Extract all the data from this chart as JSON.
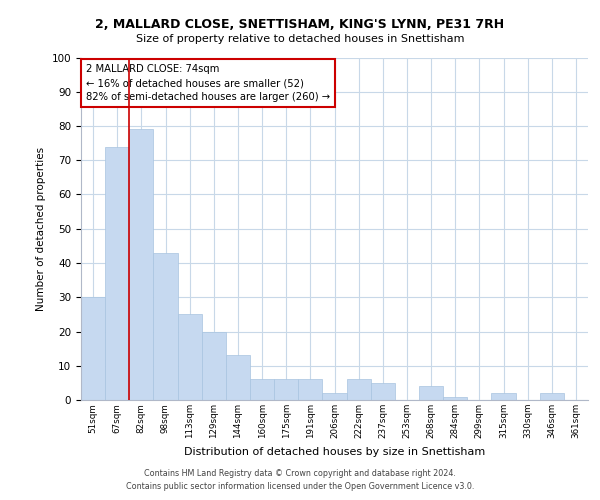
{
  "title_line1": "2, MALLARD CLOSE, SNETTISHAM, KING'S LYNN, PE31 7RH",
  "title_line2": "Size of property relative to detached houses in Snettisham",
  "xlabel": "Distribution of detached houses by size in Snettisham",
  "ylabel": "Number of detached properties",
  "bin_labels": [
    "51sqm",
    "67sqm",
    "82sqm",
    "98sqm",
    "113sqm",
    "129sqm",
    "144sqm",
    "160sqm",
    "175sqm",
    "191sqm",
    "206sqm",
    "222sqm",
    "237sqm",
    "253sqm",
    "268sqm",
    "284sqm",
    "299sqm",
    "315sqm",
    "330sqm",
    "346sqm",
    "361sqm"
  ],
  "bar_values": [
    30,
    74,
    79,
    43,
    25,
    20,
    13,
    6,
    6,
    6,
    2,
    6,
    5,
    0,
    4,
    1,
    0,
    2,
    0,
    2,
    0
  ],
  "bar_color": "#c6d9f0",
  "bar_edge_color": "#a8c4e0",
  "annotation_title": "2 MALLARD CLOSE: 74sqm",
  "annotation_line1": "← 16% of detached houses are smaller (52)",
  "annotation_line2": "82% of semi-detached houses are larger (260) →",
  "annotation_box_color": "#ffffff",
  "annotation_box_edge": "#cc0000",
  "property_line_color": "#cc0000",
  "ylim": [
    0,
    100
  ],
  "yticks": [
    0,
    10,
    20,
    30,
    40,
    50,
    60,
    70,
    80,
    90,
    100
  ],
  "footer_line1": "Contains HM Land Registry data © Crown copyright and database right 2024.",
  "footer_line2": "Contains public sector information licensed under the Open Government Licence v3.0.",
  "background_color": "#ffffff",
  "grid_color": "#c8d8e8"
}
